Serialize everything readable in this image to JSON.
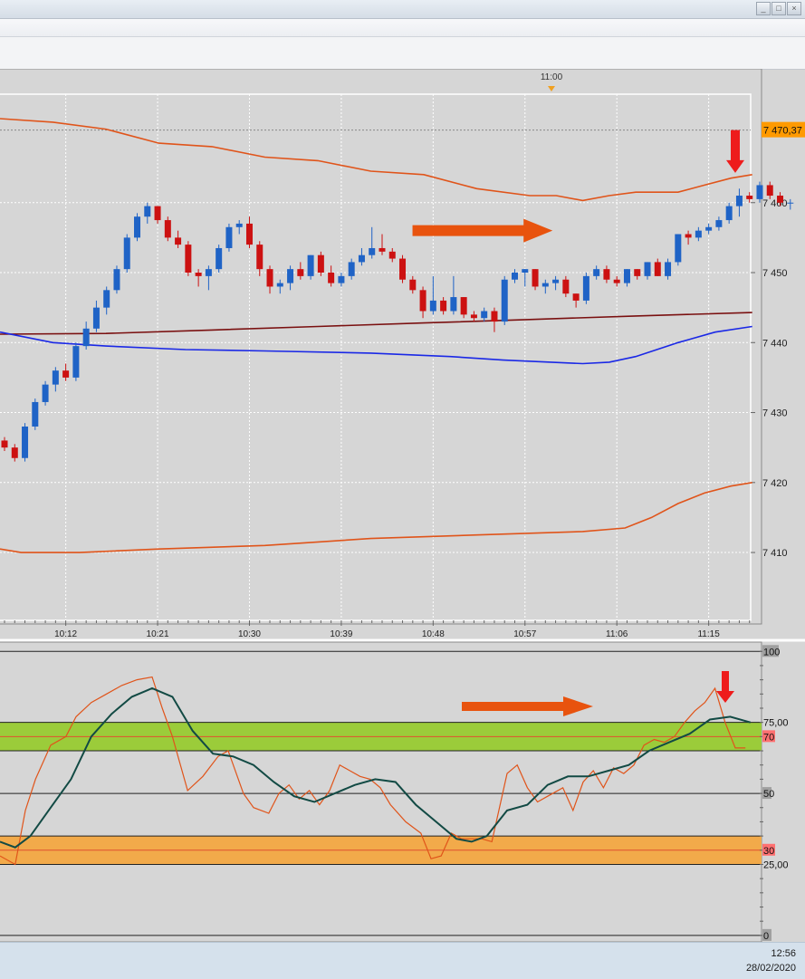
{
  "window": {
    "buttons": [
      "_",
      "□",
      "×"
    ]
  },
  "time_marker": "11:00",
  "taskbar": {
    "time": "12:56",
    "date": "28/02/2020"
  },
  "chart_data": [
    {
      "type": "candlestick",
      "x_tick_labels": [
        "10:12",
        "10:21",
        "10:30",
        "10:39",
        "10:48",
        "10:57",
        "11:06",
        "11:15"
      ],
      "y_tick_labels": [
        "7 460",
        "7 450",
        "7 440",
        "7 430",
        "7 420",
        "7 410"
      ],
      "y_ticks": [
        7460,
        7450,
        7440,
        7430,
        7420,
        7410
      ],
      "ylim": [
        7400.3,
        7475.5
      ],
      "current_price_label": "7 470,37",
      "current_price": 7470.37,
      "grid": true,
      "colors": {
        "up": "#1f63c6",
        "down": "#cc1111",
        "bollinger": "#e0541a",
        "middle": "#1a28e6",
        "ma": "#7a1010",
        "arrow_right": "#e8530e",
        "arrow_down": "#ee1c1c"
      },
      "candles": [
        [
          7426,
          7426.5,
          7424.5,
          7425
        ],
        [
          7425,
          7425.5,
          7423,
          7423.5
        ],
        [
          7423.5,
          7428.5,
          7423,
          7428
        ],
        [
          7428,
          7432,
          7427.5,
          7431.5
        ],
        [
          7431.5,
          7434.5,
          7431,
          7434
        ],
        [
          7434,
          7436.5,
          7433,
          7436
        ],
        [
          7436,
          7437,
          7434.5,
          7435
        ],
        [
          7435,
          7440,
          7434.5,
          7439.5
        ],
        [
          7439.5,
          7443,
          7439,
          7442
        ],
        [
          7442,
          7446,
          7441.5,
          7445
        ],
        [
          7445,
          7448,
          7444,
          7447.5
        ],
        [
          7447.5,
          7451,
          7447,
          7450.5
        ],
        [
          7450.5,
          7455.5,
          7450,
          7455
        ],
        [
          7455,
          7458.5,
          7454.5,
          7458
        ],
        [
          7458,
          7460,
          7457,
          7459.5
        ],
        [
          7459.5,
          7459.5,
          7457,
          7457.5
        ],
        [
          7457.5,
          7458,
          7454.5,
          7455
        ],
        [
          7455,
          7456,
          7453.5,
          7454
        ],
        [
          7454,
          7454.5,
          7449.5,
          7450
        ],
        [
          7450,
          7450.5,
          7448,
          7449.5
        ],
        [
          7449.5,
          7451,
          7447.5,
          7450.5
        ],
        [
          7450.5,
          7454,
          7450,
          7453.5
        ],
        [
          7453.5,
          7457,
          7453,
          7456.5
        ],
        [
          7456.5,
          7457.5,
          7455.5,
          7457
        ],
        [
          7457,
          7458,
          7453.5,
          7454
        ],
        [
          7454,
          7454.5,
          7449.5,
          7450.5
        ],
        [
          7450.5,
          7451,
          7447,
          7448
        ],
        [
          7448,
          7449,
          7447,
          7448.5
        ],
        [
          7448.5,
          7451,
          7447.5,
          7450.5
        ],
        [
          7450.5,
          7451.5,
          7449,
          7449.5
        ],
        [
          7449.5,
          7452.5,
          7449,
          7452.5
        ],
        [
          7452.5,
          7453,
          7449.5,
          7450
        ],
        [
          7450,
          7451,
          7448,
          7448.5
        ],
        [
          7448.5,
          7450,
          7448,
          7449.5
        ],
        [
          7449.5,
          7452,
          7449,
          7451.5
        ],
        [
          7451.5,
          7453.5,
          7451,
          7452.5
        ],
        [
          7452.5,
          7456.5,
          7452,
          7453.5
        ],
        [
          7453.5,
          7455.5,
          7452.5,
          7453
        ],
        [
          7453,
          7453.5,
          7451.5,
          7452
        ],
        [
          7452,
          7452.5,
          7448.5,
          7449
        ],
        [
          7449,
          7449.5,
          7447,
          7447.5
        ],
        [
          7447.5,
          7448,
          7443.5,
          7444.5
        ],
        [
          7444.5,
          7449.5,
          7444,
          7446
        ],
        [
          7446,
          7446.5,
          7444,
          7444.5
        ],
        [
          7444.5,
          7449.5,
          7444,
          7446.5
        ],
        [
          7446.5,
          7446.5,
          7443.5,
          7444
        ],
        [
          7444,
          7444.5,
          7443,
          7443.5
        ],
        [
          7443.5,
          7445,
          7443,
          7444.5
        ],
        [
          7444.5,
          7445,
          7441.5,
          7443
        ],
        [
          7443,
          7449.5,
          7442.5,
          7449
        ],
        [
          7449,
          7450.5,
          7448.5,
          7450
        ],
        [
          7450,
          7450.5,
          7448,
          7450.5
        ],
        [
          7450.5,
          7450.5,
          7447.5,
          7448
        ],
        [
          7448,
          7449,
          7447,
          7448.5
        ],
        [
          7448.5,
          7449.5,
          7447.5,
          7449
        ],
        [
          7449,
          7449.5,
          7446.5,
          7447
        ],
        [
          7447,
          7447,
          7445,
          7446
        ],
        [
          7446,
          7450,
          7445.5,
          7449.5
        ],
        [
          7449.5,
          7451,
          7449,
          7450.5
        ],
        [
          7450.5,
          7451,
          7448.5,
          7449
        ],
        [
          7449,
          7449.5,
          7448,
          7448.5
        ],
        [
          7448.5,
          7450.5,
          7448,
          7450.5
        ],
        [
          7450.5,
          7450.5,
          7449,
          7449.5
        ],
        [
          7449.5,
          7451.5,
          7449,
          7451.5
        ],
        [
          7451.5,
          7452,
          7449.5,
          7449.5
        ],
        [
          7449.5,
          7452,
          7449,
          7451.5
        ],
        [
          7451.5,
          7455.5,
          7451,
          7455.5
        ],
        [
          7455.5,
          7456,
          7454,
          7455
        ],
        [
          7455,
          7456.5,
          7454.5,
          7456
        ],
        [
          7456,
          7457,
          7455.5,
          7456.5
        ],
        [
          7456.5,
          7458,
          7456,
          7457.5
        ],
        [
          7457.5,
          7460,
          7457,
          7459.5
        ],
        [
          7459.5,
          7462,
          7458,
          7461
        ],
        [
          7461,
          7461.5,
          7460,
          7460.5
        ],
        [
          7460.5,
          7463,
          7460,
          7462.5
        ],
        [
          7462.5,
          7463,
          7460.5,
          7461
        ],
        [
          7461,
          7461.5,
          7459.5,
          7460
        ],
        [
          7460,
          7460.5,
          7459,
          7460
        ]
      ],
      "bollinger_upper": [
        [
          0,
          7472
        ],
        [
          10,
          7471.5
        ],
        [
          20,
          7470.5
        ],
        [
          30,
          7468.5
        ],
        [
          40,
          7468
        ],
        [
          50,
          7466.5
        ],
        [
          60,
          7466
        ],
        [
          70,
          7464.5
        ],
        [
          80,
          7464
        ],
        [
          90,
          7462
        ],
        [
          100,
          7461
        ],
        [
          105,
          7461
        ],
        [
          110,
          7460.3
        ],
        [
          115,
          7461
        ],
        [
          120,
          7461.5
        ],
        [
          128,
          7461.5
        ],
        [
          133,
          7462.5
        ],
        [
          138,
          7463.5
        ],
        [
          142,
          7464
        ]
      ],
      "bollinger_lower": [
        [
          0,
          7410.5
        ],
        [
          4,
          7410
        ],
        [
          8,
          7410
        ],
        [
          15,
          7410
        ],
        [
          30,
          7410.5
        ],
        [
          50,
          7411
        ],
        [
          70,
          7412
        ],
        [
          90,
          7412.5
        ],
        [
          110,
          7413
        ],
        [
          118,
          7413.5
        ],
        [
          123,
          7415
        ],
        [
          128,
          7417
        ],
        [
          133,
          7418.5
        ],
        [
          138,
          7419.5
        ],
        [
          142,
          7420
        ]
      ],
      "middle_band": [
        [
          0,
          7441.5
        ],
        [
          10,
          7440
        ],
        [
          20,
          7439.5
        ],
        [
          35,
          7439
        ],
        [
          50,
          7438.8
        ],
        [
          70,
          7438.5
        ],
        [
          85,
          7438
        ],
        [
          95,
          7437.5
        ],
        [
          110,
          7437
        ],
        [
          115,
          7437.2
        ],
        [
          120,
          7438
        ],
        [
          128,
          7440
        ],
        [
          135,
          7441.5
        ],
        [
          142,
          7442.3
        ]
      ],
      "moving_average": [
        [
          0,
          7441.2
        ],
        [
          20,
          7441.3
        ],
        [
          40,
          7441.8
        ],
        [
          60,
          7442.3
        ],
        [
          80,
          7442.8
        ],
        [
          100,
          7443.3
        ],
        [
          120,
          7443.8
        ],
        [
          142,
          7444.3
        ]
      ],
      "right_arrow": {
        "from": [
          83,
          7456
        ],
        "to": [
          112,
          7456
        ]
      },
      "down_arrow": {
        "at": [
          140,
          7470.5
        ],
        "tip": 7464
      }
    },
    {
      "type": "line",
      "y_tick_labels": [
        "100",
        "75,00",
        "70",
        "50",
        "30",
        "25,00",
        "0"
      ],
      "y_ticks": [
        100,
        75,
        70,
        50,
        30,
        25,
        0
      ],
      "ylim": [
        -1,
        102
      ],
      "bands": [
        {
          "from": 65,
          "to": 75,
          "color": "#9bcc3a"
        },
        {
          "from": 25,
          "to": 35,
          "color": "#f2aa4a"
        }
      ],
      "reference_lines": [
        100,
        75,
        70,
        65,
        50,
        35,
        30,
        25,
        0
      ],
      "series": [
        {
          "color": "#e0541a",
          "values": [
            [
              0,
              28
            ],
            [
              3,
              25
            ],
            [
              5,
              44
            ],
            [
              7,
              55
            ],
            [
              10,
              67
            ],
            [
              13,
              70
            ],
            [
              15,
              77
            ],
            [
              18,
              82
            ],
            [
              21,
              85
            ],
            [
              24,
              88
            ],
            [
              27,
              90
            ],
            [
              30,
              91
            ],
            [
              32,
              80
            ],
            [
              34,
              70
            ],
            [
              37,
              51
            ],
            [
              40,
              56
            ],
            [
              43,
              63
            ],
            [
              45,
              65
            ],
            [
              48,
              50
            ],
            [
              50,
              45
            ],
            [
              53,
              43
            ],
            [
              55,
              50
            ],
            [
              57,
              53
            ],
            [
              59,
              48
            ],
            [
              61,
              51
            ],
            [
              63,
              46
            ],
            [
              65,
              51
            ],
            [
              67,
              60
            ],
            [
              69,
              58
            ],
            [
              71,
              56
            ],
            [
              73,
              55
            ],
            [
              75,
              52
            ],
            [
              77,
              46
            ],
            [
              80,
              40
            ],
            [
              83,
              36
            ],
            [
              85,
              27
            ],
            [
              87,
              28
            ],
            [
              89,
              36
            ],
            [
              91,
              34
            ],
            [
              93,
              34
            ],
            [
              95,
              34
            ],
            [
              97,
              33
            ],
            [
              100,
              57
            ],
            [
              102,
              60
            ],
            [
              104,
              52
            ],
            [
              106,
              47
            ],
            [
              108,
              49
            ],
            [
              111,
              52
            ],
            [
              113,
              44
            ],
            [
              115,
              54
            ],
            [
              117,
              58
            ],
            [
              119,
              52
            ],
            [
              121,
              59
            ],
            [
              123,
              57
            ],
            [
              125,
              60
            ],
            [
              127,
              67
            ],
            [
              129,
              69
            ],
            [
              131,
              68
            ],
            [
              133,
              70
            ],
            [
              135,
              75
            ],
            [
              137,
              79
            ],
            [
              139,
              82
            ],
            [
              141,
              87
            ],
            [
              143,
              75
            ],
            [
              145,
              66
            ],
            [
              147,
              66
            ]
          ]
        },
        {
          "color": "#124a44",
          "values": [
            [
              0,
              33
            ],
            [
              3,
              31
            ],
            [
              6,
              35
            ],
            [
              10,
              45
            ],
            [
              14,
              55
            ],
            [
              18,
              70
            ],
            [
              22,
              78
            ],
            [
              26,
              84
            ],
            [
              30,
              87
            ],
            [
              34,
              84
            ],
            [
              38,
              72
            ],
            [
              42,
              64
            ],
            [
              46,
              63
            ],
            [
              50,
              60
            ],
            [
              54,
              54
            ],
            [
              58,
              49
            ],
            [
              62,
              47
            ],
            [
              66,
              50
            ],
            [
              70,
              53
            ],
            [
              74,
              55
            ],
            [
              78,
              54
            ],
            [
              82,
              46
            ],
            [
              86,
              40
            ],
            [
              90,
              34
            ],
            [
              93,
              33
            ],
            [
              96,
              35
            ],
            [
              100,
              44
            ],
            [
              104,
              46
            ],
            [
              108,
              53
            ],
            [
              112,
              56
            ],
            [
              116,
              56
            ],
            [
              120,
              58
            ],
            [
              124,
              60
            ],
            [
              128,
              65
            ],
            [
              132,
              68
            ],
            [
              136,
              71
            ],
            [
              140,
              76
            ],
            [
              144,
              77
            ],
            [
              148,
              75
            ]
          ]
        }
      ]
    }
  ]
}
